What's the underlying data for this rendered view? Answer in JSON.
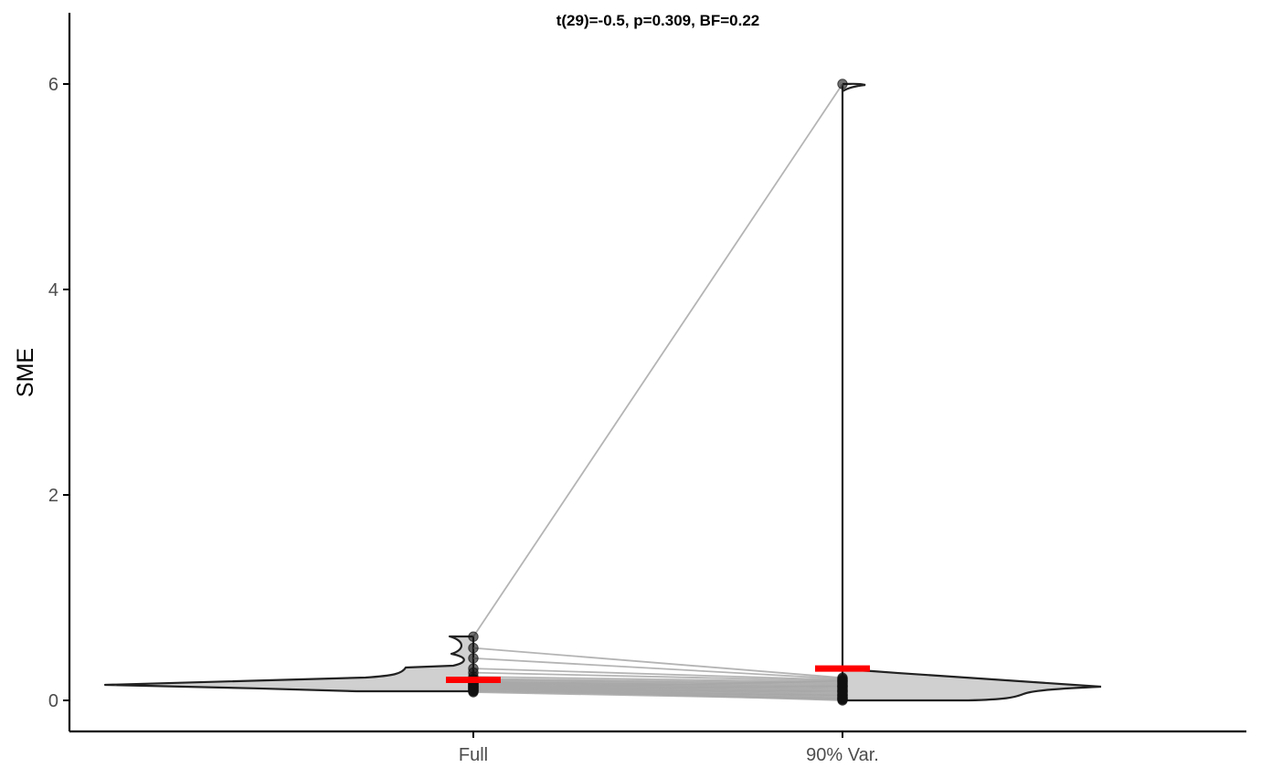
{
  "chart_data": {
    "type": "violin",
    "title": "t(29)=-0.5, p=0.309, BF=0.22",
    "xlabel": "",
    "ylabel": "SME",
    "categories": [
      "Full",
      "90% Var."
    ],
    "ylim": [
      -0.3,
      6.7
    ],
    "yticks": [
      0,
      2,
      4,
      6
    ],
    "ytick_labels": [
      "0",
      "2",
      "4",
      "6"
    ],
    "grid": false,
    "legend": "none",
    "colors": {
      "violin_fill": "#d0d0d0",
      "violin_stroke": "#222222",
      "mean_marker": "#ff0000",
      "paired_lines": "#a8a8a8",
      "points": "#111111",
      "axis": "#000000"
    },
    "series": [
      {
        "name": "Full",
        "values": [
          0.62,
          0.51,
          0.41,
          0.31,
          0.27,
          0.23,
          0.21,
          0.2,
          0.19,
          0.18,
          0.18,
          0.17,
          0.17,
          0.16,
          0.16,
          0.15,
          0.15,
          0.14,
          0.14,
          0.13,
          0.13,
          0.12,
          0.12,
          0.11,
          0.11,
          0.1,
          0.1,
          0.09,
          0.09,
          0.08
        ],
        "mean": 0.2
      },
      {
        "name": "90% Var.",
        "values": [
          6.0,
          0.22,
          0.21,
          0.2,
          0.19,
          0.18,
          0.17,
          0.16,
          0.15,
          0.14,
          0.13,
          0.12,
          0.11,
          0.1,
          0.09,
          0.08,
          0.07,
          0.06,
          0.05,
          0.04,
          0.03,
          0.02,
          0.01,
          0.0,
          0.19,
          0.14,
          0.09,
          0.05,
          0.02,
          0.01
        ],
        "mean": 0.31
      }
    ]
  }
}
